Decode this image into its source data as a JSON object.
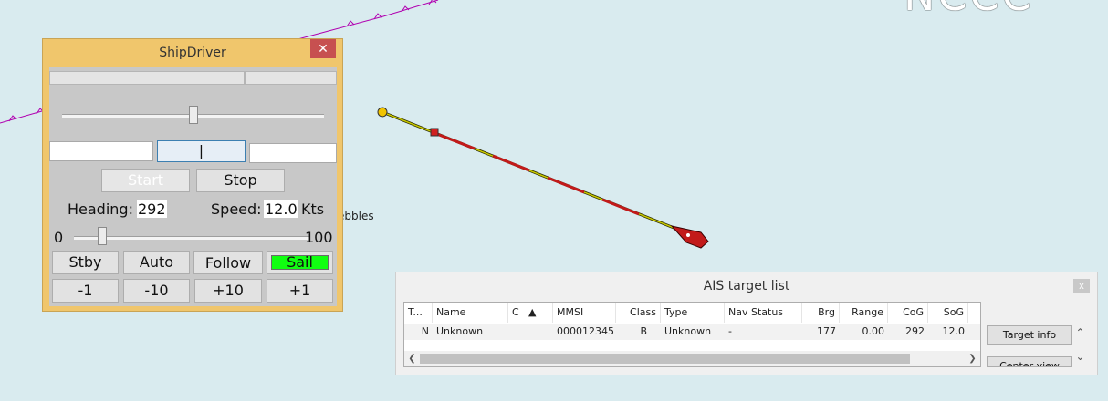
{
  "chart": {
    "place_label": "ebbles",
    "large_label": "NCCC"
  },
  "shipdriver": {
    "title": "ShipDriver",
    "close_glyph": "✕",
    "center_field_value": "|",
    "start_label": "Start",
    "stop_label": "Stop",
    "heading_label": "Heading:",
    "heading_value": "292",
    "speed_label": "Speed:",
    "speed_value": "12.0",
    "speed_unit": "Kts",
    "range_min": "0",
    "range_max": "100",
    "speed_slider_level": 12,
    "rudder_slider_level": 0.5,
    "mode_buttons": [
      "Stby",
      "Auto",
      "Follow",
      "Sail"
    ],
    "active_mode": "Sail",
    "active_color": "#10ff10",
    "step_buttons": [
      "-1",
      "-10",
      "+10",
      "+1"
    ]
  },
  "ais": {
    "title": "AIS target list",
    "close_glyph": "x",
    "columns": [
      "T...",
      "Name",
      "C",
      "▲",
      "MMSI",
      "Class",
      "Type",
      "Nav Status",
      "Brg",
      "Range",
      "CoG",
      "SoG"
    ],
    "rows": [
      {
        "t": "N",
        "name": "Unknown",
        "c": "",
        "mmsi": "000012345",
        "class": "B",
        "type": "Unknown",
        "nav_status": "-",
        "brg": "177",
        "range": "0.00",
        "cog": "292",
        "sog": "12.0"
      }
    ],
    "target_info_label": "Target info",
    "center_view_label": "Center view",
    "scroll_up_glyph": "⌃",
    "scroll_down_glyph": "⌄",
    "scroll_left_glyph": "❮",
    "scroll_right_glyph": "❯"
  },
  "colors": {
    "sea": "#d9ebef",
    "ship": "#c21a1a",
    "track": "#c9c900",
    "boundary": "#b000b0"
  }
}
